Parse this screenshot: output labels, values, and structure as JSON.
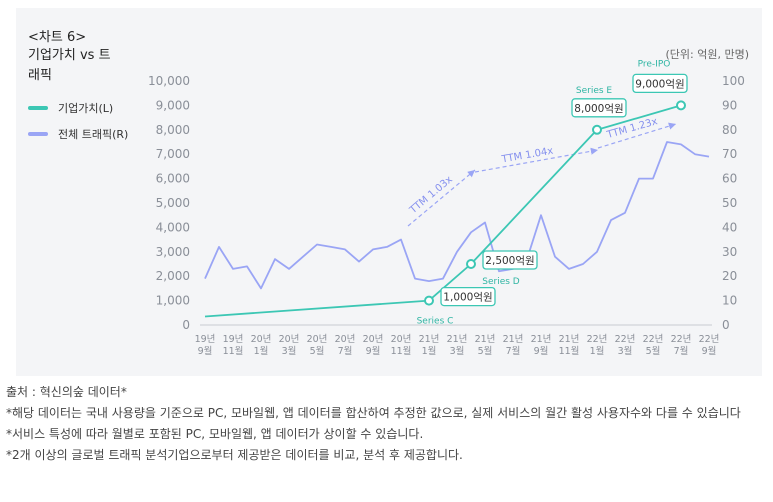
{
  "chart_label": "<차트 6>",
  "chart_title": "기업가치 vs 트래픽",
  "unit_note": "(단위: 억원, 만명)",
  "legend": [
    {
      "label": "기업가치(L)",
      "color": "#3cc7b4"
    },
    {
      "label": "전체 트래픽(R)",
      "color": "#9aa5f5"
    }
  ],
  "chart_data": {
    "type": "line",
    "categories": [
      "19년 9월",
      "19년 10월",
      "19년 11월",
      "19년 12월",
      "20년 1월",
      "20년 2월",
      "20년 3월",
      "20년 4월",
      "20년 5월",
      "20년 6월",
      "20년 7월",
      "20년 8월",
      "20년 9월",
      "20년 10월",
      "20년 11월",
      "20년 12월",
      "21년 1월",
      "21년 2월",
      "21년 3월",
      "21년 4월",
      "21년 5월",
      "21년 6월",
      "21년 7월",
      "21년 8월",
      "21년 9월",
      "21년 10월",
      "21년 11월",
      "21년 12월",
      "22년 1월",
      "22년 2월",
      "22년 3월",
      "22년 4월",
      "22년 5월",
      "22년 6월",
      "22년 7월",
      "22년 8월",
      "22년 9월"
    ],
    "tick_labels": [
      {
        "year": "19년",
        "month": "9월"
      },
      {
        "year": "19년",
        "month": "11월"
      },
      {
        "year": "20년",
        "month": "1월"
      },
      {
        "year": "20년",
        "month": "3월"
      },
      {
        "year": "20년",
        "month": "5월"
      },
      {
        "year": "20년",
        "month": "7월"
      },
      {
        "year": "20년",
        "month": "9월"
      },
      {
        "year": "20년",
        "month": "11월"
      },
      {
        "year": "21년",
        "month": "1월"
      },
      {
        "year": "21년",
        "month": "3월"
      },
      {
        "year": "21년",
        "month": "5월"
      },
      {
        "year": "21년",
        "month": "7월"
      },
      {
        "year": "21년",
        "month": "9월"
      },
      {
        "year": "21년",
        "month": "11월"
      },
      {
        "year": "22년",
        "month": "1월"
      },
      {
        "year": "22년",
        "month": "3월"
      },
      {
        "year": "22년",
        "month": "5월"
      },
      {
        "year": "22년",
        "month": "7월"
      },
      {
        "year": "22년",
        "month": "9월"
      }
    ],
    "left_axis": {
      "min": 0,
      "max": 10000,
      "ticks": [
        "0",
        "1,000",
        "2,000",
        "3,000",
        "4,000",
        "5,000",
        "6,000",
        "7,000",
        "8,000",
        "9,000",
        "10,000"
      ]
    },
    "right_axis": {
      "min": 0,
      "max": 100,
      "ticks": [
        "0",
        "10",
        "20",
        "30",
        "40",
        "50",
        "60",
        "70",
        "80",
        "90",
        "100"
      ]
    },
    "series": [
      {
        "name": "기업가치(L)",
        "axis": "left",
        "color": "#3cc7b4",
        "points": [
          {
            "category": "19년 9월",
            "value": 350
          },
          {
            "category": "21년 1월",
            "value": 1000
          },
          {
            "category": "21년 4월",
            "value": 2500
          },
          {
            "category": "22년 1월",
            "value": 8000
          },
          {
            "category": "22년 7월",
            "value": 9000
          }
        ]
      },
      {
        "name": "전체 트래픽(R)",
        "axis": "right",
        "color": "#9aa5f5",
        "values": [
          19,
          32,
          23,
          24,
          15,
          27,
          23,
          28,
          33,
          32,
          31,
          26,
          31,
          32,
          35,
          19,
          18,
          19,
          30,
          38,
          42,
          22,
          23,
          27,
          45,
          28,
          23,
          25,
          30,
          43,
          46,
          60,
          60,
          75,
          74,
          70,
          69
        ]
      }
    ],
    "annotations": [
      {
        "category": "21년 1월",
        "value": 1000,
        "label": "1,000억원",
        "round": "Series C"
      },
      {
        "category": "21년 4월",
        "value": 2500,
        "label": "2,500억원",
        "round": "Series D"
      },
      {
        "category": "22년 1월",
        "value": 8000,
        "label": "8,000억원",
        "round": "Series E"
      },
      {
        "category": "22년 7월",
        "value": 9000,
        "label": "9,000억원",
        "round": "Pre-IPO"
      }
    ],
    "ttm_labels": [
      "TTM 1.03x",
      "TTM 1.04x",
      "TTM 1.23x"
    ]
  },
  "notes": [
    "출처 : 혁신의숲 데이터*",
    "*해당 데이터는 국내 사용량을 기준으로 PC, 모바일웹, 앱 데이터를 합산하여 추정한 값으로, 실제 서비스의 월간 활성 사용자수와 다를 수 있습니다",
    "*서비스 특성에 따라 월별로 포함된 PC, 모바일웹, 앱 데이터가 상이할 수 있습니다.",
    "*2개 이상의 글로벌 트래픽 분석기업으로부터 제공받은 데이터를 비교, 분석 후 제공합니다."
  ]
}
